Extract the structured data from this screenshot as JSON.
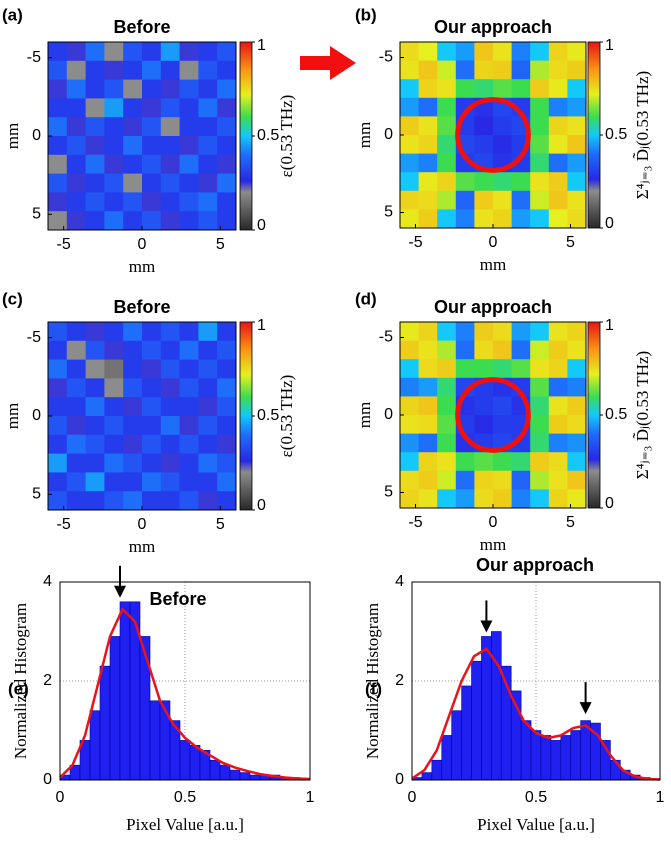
{
  "chart_data": [
    {
      "type": "heatmap",
      "panel": "(a)",
      "title": "Before",
      "x_label": "mm",
      "y_label": "mm",
      "colorbar_label": "ε(0.53 THz)",
      "xlim": [
        -6,
        6
      ],
      "ylim": [
        -6,
        6
      ],
      "xticks": [
        -5,
        0,
        5
      ],
      "yticks": [
        -5,
        0,
        5
      ],
      "colorbar_lim": [
        0,
        1
      ],
      "colorbar_ticks": [
        0,
        0.5,
        1
      ],
      "z": [
        [
          0.3,
          0.25,
          0.4,
          0.2,
          0.35,
          0.3,
          0.45,
          0.25,
          0.3,
          0.35
        ],
        [
          0.35,
          0.2,
          0.3,
          0.25,
          0.3,
          0.4,
          0.3,
          0.2,
          0.35,
          0.3
        ],
        [
          0.25,
          0.4,
          0.3,
          0.35,
          0.2,
          0.3,
          0.25,
          0.35,
          0.3,
          0.4
        ],
        [
          0.3,
          0.3,
          0.2,
          0.45,
          0.3,
          0.25,
          0.35,
          0.3,
          0.4,
          0.25
        ],
        [
          0.4,
          0.25,
          0.35,
          0.3,
          0.25,
          0.35,
          0.2,
          0.3,
          0.3,
          0.35
        ],
        [
          0.3,
          0.35,
          0.25,
          0.3,
          0.4,
          0.3,
          0.3,
          0.25,
          0.35,
          0.3
        ],
        [
          0.2,
          0.3,
          0.4,
          0.25,
          0.3,
          0.35,
          0.25,
          0.4,
          0.3,
          0.25
        ],
        [
          0.35,
          0.25,
          0.3,
          0.35,
          0.2,
          0.3,
          0.35,
          0.3,
          0.25,
          0.4
        ],
        [
          0.25,
          0.3,
          0.35,
          0.3,
          0.35,
          0.25,
          0.3,
          0.35,
          0.4,
          0.3
        ],
        [
          0.2,
          0.25,
          0.3,
          0.4,
          0.3,
          0.35,
          0.25,
          0.3,
          0.35,
          0.3
        ]
      ]
    },
    {
      "type": "heatmap",
      "panel": "(b)",
      "title": "Our approach",
      "x_label": "mm",
      "y_label": "mm",
      "colorbar_label": "Σ⁴ⱼ₌₃ D̃ⱼ(0.53 THz)",
      "xlim": [
        -6,
        6
      ],
      "ylim": [
        -6,
        6
      ],
      "xticks": [
        -5,
        0,
        5
      ],
      "yticks": [
        -5,
        0,
        5
      ],
      "colorbar_lim": [
        0,
        1
      ],
      "colorbar_ticks": [
        0,
        0.5,
        1
      ],
      "z": [
        [
          0.75,
          0.72,
          0.5,
          0.45,
          0.78,
          0.74,
          0.42,
          0.5,
          0.76,
          0.73
        ],
        [
          0.74,
          0.78,
          0.7,
          0.4,
          0.76,
          0.77,
          0.38,
          0.68,
          0.75,
          0.77
        ],
        [
          0.5,
          0.76,
          0.74,
          0.6,
          0.58,
          0.62,
          0.6,
          0.77,
          0.73,
          0.5
        ],
        [
          0.45,
          0.4,
          0.6,
          0.3,
          0.28,
          0.32,
          0.3,
          0.6,
          0.42,
          0.45
        ],
        [
          0.77,
          0.74,
          0.62,
          0.3,
          0.26,
          0.3,
          0.32,
          0.6,
          0.76,
          0.74
        ],
        [
          0.74,
          0.76,
          0.58,
          0.32,
          0.3,
          0.27,
          0.3,
          0.62,
          0.73,
          0.78
        ],
        [
          0.45,
          0.42,
          0.6,
          0.3,
          0.32,
          0.28,
          0.3,
          0.58,
          0.4,
          0.45
        ],
        [
          0.5,
          0.73,
          0.76,
          0.62,
          0.6,
          0.58,
          0.6,
          0.74,
          0.77,
          0.5
        ],
        [
          0.76,
          0.75,
          0.68,
          0.38,
          0.77,
          0.74,
          0.4,
          0.7,
          0.78,
          0.74
        ],
        [
          0.73,
          0.77,
          0.5,
          0.42,
          0.74,
          0.76,
          0.45,
          0.5,
          0.72,
          0.75
        ]
      ]
    },
    {
      "type": "heatmap",
      "panel": "(c)",
      "title": "Before",
      "x_label": "mm",
      "y_label": "mm",
      "colorbar_label": "ε(0.53 THz)",
      "xlim": [
        -6,
        6
      ],
      "ylim": [
        -6,
        6
      ],
      "xticks": [
        -5,
        0,
        5
      ],
      "yticks": [
        -5,
        0,
        5
      ],
      "colorbar_lim": [
        0,
        1
      ],
      "colorbar_ticks": [
        0,
        0.5,
        1
      ],
      "z": [
        [
          0.35,
          0.3,
          0.25,
          0.3,
          0.4,
          0.3,
          0.35,
          0.3,
          0.45,
          0.3
        ],
        [
          0.3,
          0.2,
          0.35,
          0.25,
          0.3,
          0.35,
          0.3,
          0.4,
          0.3,
          0.35
        ],
        [
          0.4,
          0.3,
          0.2,
          0.15,
          0.3,
          0.25,
          0.35,
          0.3,
          0.35,
          0.3
        ],
        [
          0.25,
          0.35,
          0.3,
          0.2,
          0.35,
          0.3,
          0.25,
          0.35,
          0.3,
          0.4
        ],
        [
          0.3,
          0.3,
          0.4,
          0.3,
          0.25,
          0.35,
          0.3,
          0.3,
          0.25,
          0.35
        ],
        [
          0.35,
          0.25,
          0.3,
          0.35,
          0.3,
          0.3,
          0.4,
          0.25,
          0.35,
          0.3
        ],
        [
          0.3,
          0.4,
          0.35,
          0.3,
          0.25,
          0.35,
          0.3,
          0.35,
          0.3,
          0.25
        ],
        [
          0.45,
          0.3,
          0.3,
          0.4,
          0.35,
          0.3,
          0.25,
          0.3,
          0.4,
          0.35
        ],
        [
          0.3,
          0.35,
          0.45,
          0.3,
          0.3,
          0.4,
          0.35,
          0.3,
          0.3,
          0.4
        ],
        [
          0.35,
          0.3,
          0.3,
          0.35,
          0.4,
          0.3,
          0.3,
          0.35,
          0.25,
          0.3
        ]
      ]
    },
    {
      "type": "heatmap",
      "panel": "(d)",
      "title": "Our approach",
      "x_label": "mm",
      "y_label": "mm",
      "colorbar_label": "Σ⁴ⱼ₌₃ D̃ⱼ(0.53 THz)",
      "xlim": [
        -6,
        6
      ],
      "ylim": [
        -6,
        6
      ],
      "xticks": [
        -5,
        0,
        5
      ],
      "yticks": [
        -5,
        0,
        5
      ],
      "colorbar_lim": [
        0,
        1
      ],
      "colorbar_ticks": [
        0,
        0.5,
        1
      ],
      "z": [
        [
          0.73,
          0.76,
          0.5,
          0.42,
          0.77,
          0.75,
          0.45,
          0.5,
          0.74,
          0.76
        ],
        [
          0.77,
          0.74,
          0.68,
          0.4,
          0.75,
          0.78,
          0.4,
          0.7,
          0.77,
          0.74
        ],
        [
          0.5,
          0.75,
          0.77,
          0.6,
          0.6,
          0.58,
          0.62,
          0.74,
          0.76,
          0.5
        ],
        [
          0.42,
          0.45,
          0.58,
          0.32,
          0.3,
          0.28,
          0.3,
          0.62,
          0.4,
          0.42
        ],
        [
          0.76,
          0.78,
          0.6,
          0.28,
          0.3,
          0.32,
          0.28,
          0.58,
          0.74,
          0.77
        ],
        [
          0.74,
          0.75,
          0.62,
          0.3,
          0.27,
          0.3,
          0.3,
          0.6,
          0.77,
          0.75
        ],
        [
          0.44,
          0.4,
          0.6,
          0.28,
          0.3,
          0.32,
          0.3,
          0.58,
          0.42,
          0.44
        ],
        [
          0.5,
          0.76,
          0.74,
          0.6,
          0.62,
          0.6,
          0.58,
          0.77,
          0.75,
          0.5
        ],
        [
          0.75,
          0.77,
          0.7,
          0.4,
          0.76,
          0.75,
          0.38,
          0.68,
          0.74,
          0.78
        ],
        [
          0.76,
          0.74,
          0.5,
          0.45,
          0.75,
          0.77,
          0.42,
          0.5,
          0.76,
          0.73
        ]
      ]
    },
    {
      "type": "histogram",
      "panel": "(e)",
      "title": "Before",
      "x_label": "Pixel Value [a.u.]",
      "y_label": "Normalized Histogram",
      "xlim": [
        0,
        1
      ],
      "ylim": [
        0,
        4
      ],
      "xticks": [
        0,
        0.5,
        1
      ],
      "yticks": [
        0,
        2,
        4
      ],
      "grid": true,
      "color": "#2020f0",
      "bins": [
        0,
        0.04,
        0.08,
        0.12,
        0.16,
        0.2,
        0.24,
        0.28,
        0.32,
        0.36,
        0.4,
        0.44,
        0.48,
        0.52,
        0.56,
        0.6,
        0.64,
        0.68,
        0.72,
        0.76,
        0.8,
        0.84,
        0.88,
        0.92,
        0.96,
        1
      ],
      "values": [
        0.1,
        0.3,
        0.8,
        1.4,
        2.3,
        2.9,
        3.6,
        3.6,
        2.9,
        1.6,
        1.6,
        1.2,
        0.8,
        0.7,
        0.6,
        0.4,
        0.3,
        0.2,
        0.15,
        0.1,
        0.1,
        0.1,
        0.05,
        0.05,
        0.03
      ],
      "fit": {
        "color": "#e8141c",
        "x": [
          0,
          0.05,
          0.1,
          0.15,
          0.2,
          0.25,
          0.3,
          0.35,
          0.4,
          0.45,
          0.5,
          0.55,
          0.6,
          0.65,
          0.7,
          0.75,
          0.8,
          0.85,
          0.9,
          0.95,
          1
        ],
        "y": [
          0.05,
          0.3,
          0.9,
          1.9,
          2.9,
          3.45,
          3.2,
          2.4,
          1.6,
          1.15,
          0.85,
          0.65,
          0.5,
          0.35,
          0.25,
          0.18,
          0.12,
          0.08,
          0.05,
          0.03,
          0.02
        ]
      },
      "arrows": [
        {
          "x": 0.24,
          "y": 3.6
        }
      ]
    },
    {
      "type": "histogram",
      "panel": "(f)",
      "title": "Our approach",
      "x_label": "Pixel Value [a.u.]",
      "y_label": "Normalized Histogram",
      "xlim": [
        0,
        1
      ],
      "ylim": [
        0,
        4
      ],
      "xticks": [
        0,
        0.5,
        1
      ],
      "yticks": [
        0,
        2,
        4
      ],
      "grid": true,
      "color": "#2020f0",
      "bins": [
        0,
        0.04,
        0.08,
        0.12,
        0.16,
        0.2,
        0.24,
        0.28,
        0.32,
        0.36,
        0.4,
        0.44,
        0.48,
        0.52,
        0.56,
        0.6,
        0.64,
        0.68,
        0.72,
        0.76,
        0.8,
        0.84,
        0.88,
        0.92,
        0.96,
        1
      ],
      "values": [
        0.05,
        0.15,
        0.4,
        0.9,
        1.4,
        1.9,
        2.4,
        2.9,
        3.0,
        2.3,
        1.8,
        1.2,
        1.0,
        0.9,
        0.8,
        0.9,
        1.0,
        1.2,
        1.15,
        0.8,
        0.4,
        0.2,
        0.1,
        0.05,
        0.03
      ],
      "fit": {
        "color": "#e8141c",
        "x": [
          0,
          0.05,
          0.1,
          0.15,
          0.2,
          0.25,
          0.3,
          0.35,
          0.4,
          0.45,
          0.5,
          0.55,
          0.6,
          0.65,
          0.7,
          0.75,
          0.8,
          0.85,
          0.9,
          0.95,
          1
        ],
        "y": [
          0.03,
          0.2,
          0.6,
          1.3,
          2.0,
          2.5,
          2.65,
          2.3,
          1.7,
          1.2,
          0.95,
          0.85,
          0.9,
          1.05,
          1.1,
          0.9,
          0.5,
          0.2,
          0.07,
          0.02,
          0.01
        ]
      },
      "arrows": [
        {
          "x": 0.3,
          "y": 2.9
        },
        {
          "x": 0.7,
          "y": 1.25
        }
      ]
    }
  ]
}
